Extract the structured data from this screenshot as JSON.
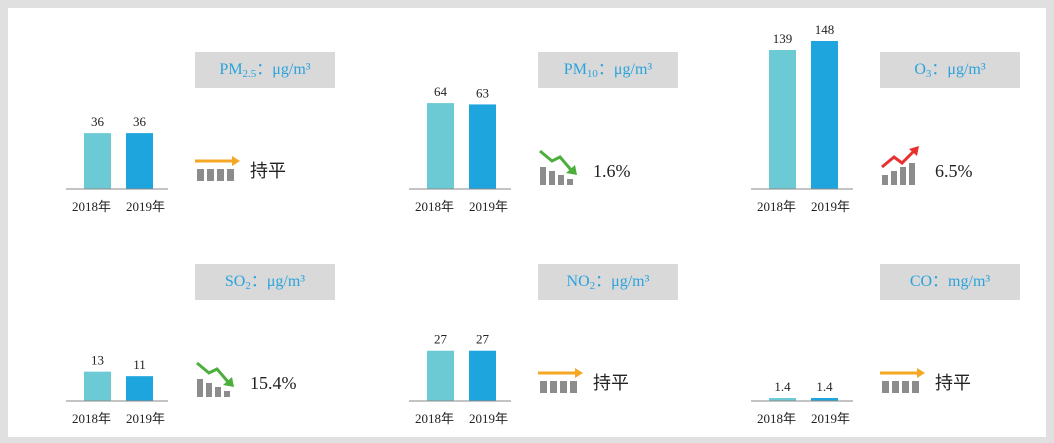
{
  "chart_data": [
    {
      "type": "bar",
      "title_main": "PM",
      "title_sub": "2.5",
      "title_unit": "：μg/m³",
      "categories": [
        "2018年",
        "2019年"
      ],
      "values": [
        36,
        36
      ],
      "colors": [
        "#6ccad5",
        "#1fa5dd"
      ],
      "ylim": [
        0,
        96
      ],
      "change": "持平",
      "trend": "flat"
    },
    {
      "type": "bar",
      "title_main": "PM",
      "title_sub": "10",
      "title_unit": "：μg/m³",
      "categories": [
        "2018年",
        "2019年"
      ],
      "values": [
        64,
        63
      ],
      "colors": [
        "#6ccad5",
        "#1fa5dd"
      ],
      "ylim": [
        0,
        111
      ],
      "change": "1.6%",
      "trend": "down"
    },
    {
      "type": "bar",
      "title_main": "O",
      "title_sub": "3",
      "title_unit": "：μg/m³",
      "categories": [
        "2018年",
        "2019年"
      ],
      "values": [
        139,
        148
      ],
      "colors": [
        "#6ccad5",
        "#1fa5dd"
      ],
      "ylim": [
        0,
        149
      ],
      "change": "6.5%",
      "trend": "up"
    },
    {
      "type": "bar",
      "title_main": "SO",
      "title_sub": "2",
      "title_unit": "：μg/m³",
      "categories": [
        "2018年",
        "2019年"
      ],
      "values": [
        13,
        11
      ],
      "colors": [
        "#6ccad5",
        "#1fa5dd"
      ],
      "ylim": [
        0,
        66
      ],
      "change": "15.4%",
      "trend": "down"
    },
    {
      "type": "bar",
      "title_main": "NO",
      "title_sub": "2",
      "title_unit": "：μg/m³",
      "categories": [
        "2018年",
        "2019年"
      ],
      "values": [
        27,
        27
      ],
      "colors": [
        "#6ccad5",
        "#1fa5dd"
      ],
      "ylim": [
        0,
        80
      ],
      "change": "持平",
      "trend": "flat"
    },
    {
      "type": "bar",
      "title_main": "CO",
      "title_unit": "：mg/m³",
      "categories": [
        "2018年",
        "2019年"
      ],
      "values": [
        1.4,
        1.4
      ],
      "colors": [
        "#6ccad5",
        "#1fa5dd"
      ],
      "ylim": [
        0,
        70
      ],
      "change": "持平",
      "trend": "flat"
    }
  ]
}
